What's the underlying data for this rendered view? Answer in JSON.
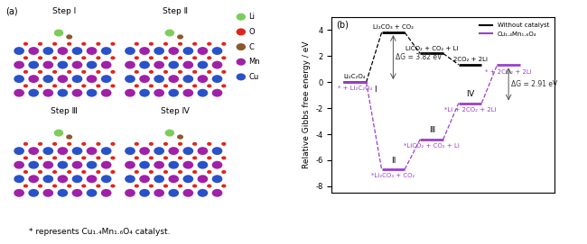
{
  "panel_a": {
    "label": "(a)",
    "steps": [
      "Step Ⅰ",
      "Step Ⅱ",
      "Step Ⅲ",
      "Step Ⅳ"
    ],
    "elements": [
      {
        "symbol": "Li",
        "color": "#7ccd5a"
      },
      {
        "symbol": "O",
        "color": "#e0241b"
      },
      {
        "symbol": "C",
        "color": "#8b5a2b"
      },
      {
        "symbol": "Mn",
        "color": "#a020a8"
      },
      {
        "symbol": "Cu",
        "color": "#2a52c8"
      }
    ]
  },
  "chart_data": {
    "type": "line",
    "panel_label": "(b)",
    "y_label": "Relative Gibbs free energy / eV",
    "categories": [
      null,
      null,
      null,
      null,
      null
    ],
    "tick_labels": "y",
    "ylim": [
      -8.5,
      5
    ],
    "yticks": [
      -8,
      -6,
      -4,
      -2,
      0,
      2,
      4
    ],
    "legend": "upper right",
    "series": [
      {
        "name": "Without catalyst",
        "color": "#000000",
        "line_style": "dashed",
        "values": [
          0,
          3.82,
          2.2,
          1.35,
          null
        ],
        "level_labels": [
          "Li₂C₂O₄",
          "Li₂CO₃ + CO₂",
          "LiCO₂ + CO₂ + Li",
          "2CO₂ + 2Li",
          null
        ]
      },
      {
        "name": "Cu₁.₄Mn₁.₆O₄",
        "color": "#9b3fc8",
        "line_style": "dashed",
        "values": [
          0,
          -6.7,
          -4.4,
          -1.61,
          1.3
        ],
        "level_labels": [
          "* + Li₂C₂O₄",
          "*Li₂CO₃ + CO₂",
          "*LiCO₂ + CO₂ + Li",
          "*Li + 2CO₂ + 2Li",
          "* + 2CO₂ + 2Li"
        ],
        "step_labels": [
          "Ⅰ",
          "Ⅱ",
          "Ⅲ",
          "Ⅳ",
          null
        ]
      }
    ],
    "annotations": [
      {
        "text": "ΔG = 3.82 eV",
        "from": 0,
        "to": 3.82,
        "category_index": 1
      },
      {
        "text": "ΔG = 2.91 eV",
        "from": -1.61,
        "to": 1.3,
        "category_index": 4
      }
    ]
  },
  "caption": "* represents Cu₁.₄Mn₁.₆O₄ catalyst."
}
